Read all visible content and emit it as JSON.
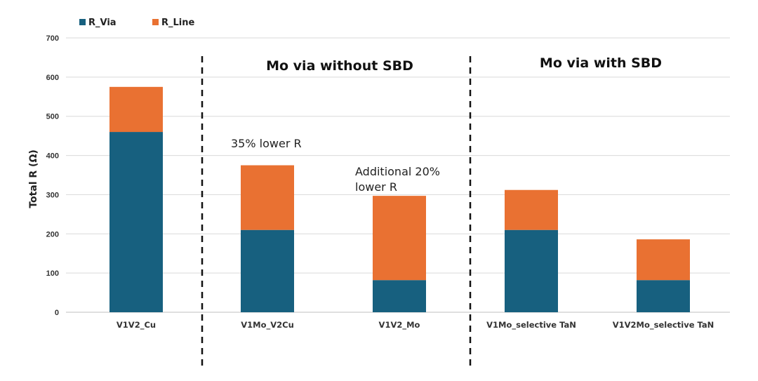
{
  "chart_data": {
    "type": "bar",
    "stacked": true,
    "title": "",
    "xlabel": "",
    "ylabel": "Total R (Ω)",
    "ylim": [
      0,
      700
    ],
    "yticks": [
      0,
      100,
      200,
      300,
      400,
      500,
      600,
      700
    ],
    "grid": true,
    "legend_position": "top-left",
    "categories": [
      "V1V2_Cu",
      "V1Mo_V2Cu",
      "V1V2_Mo",
      "V1Mo_selective TaN",
      "V1V2Mo_selective TaN"
    ],
    "series": [
      {
        "name": "R_Via",
        "color": "#17607F",
        "values": [
          460,
          210,
          82,
          210,
          82
        ]
      },
      {
        "name": "R_Line",
        "color": "#E97132",
        "values": [
          115,
          165,
          215,
          102,
          104
        ]
      }
    ],
    "section_labels": [
      "Mo via without SBD",
      "Mo via with SBD"
    ],
    "annotations": [
      {
        "lines": [
          "35% lower R"
        ],
        "category_index": 1
      },
      {
        "lines": [
          "Additional 20%",
          "lower R"
        ],
        "category_index": 2
      }
    ]
  }
}
